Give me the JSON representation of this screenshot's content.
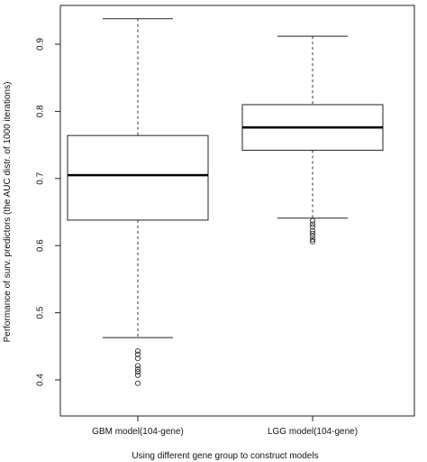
{
  "chart_data": {
    "type": "boxplot",
    "title": "",
    "xlabel": "Using different gene group to construct models",
    "ylabel": "Performance of surv. predictors (the AUC distr. of 1000 iterations)",
    "ylim": [
      0.38,
      0.96
    ],
    "yticks": [
      "0.4",
      "0.5",
      "0.6",
      "0.7",
      "0.8",
      "0.9"
    ],
    "categories": [
      "GBM model(104-gene)",
      "LGG model(104-gene)"
    ],
    "boxes": [
      {
        "name": "GBM model(104-gene)",
        "whisker_low": 0.463,
        "q1": 0.638,
        "median": 0.705,
        "q3": 0.764,
        "whisker_high": 0.938,
        "outliers": [
          0.443,
          0.438,
          0.432,
          0.421,
          0.416,
          0.412,
          0.407,
          0.395
        ]
      },
      {
        "name": "LGG model(104-gene)",
        "whisker_low": 0.641,
        "q1": 0.742,
        "median": 0.776,
        "q3": 0.81,
        "whisker_high": 0.912,
        "outliers": [
          0.637,
          0.632,
          0.628,
          0.622,
          0.618,
          0.614,
          0.609,
          0.606
        ]
      }
    ],
    "grid": false,
    "legend": "none"
  }
}
